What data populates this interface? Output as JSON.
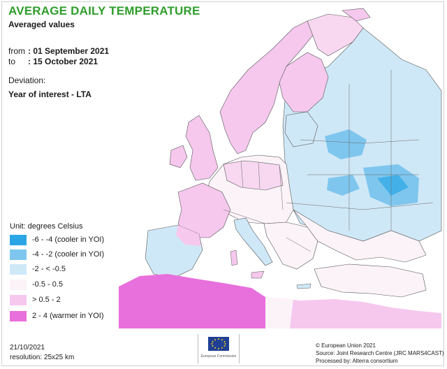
{
  "title": "AVERAGE DAILY TEMPERATURE",
  "subtitle": "Averaged values",
  "period": {
    "from_label": "from",
    "from_value": ": 01 September 2021",
    "to_label": "to",
    "to_value": ": 15 October 2021"
  },
  "deviation_label": "Deviation:",
  "comparison": "Year of interest - LTA",
  "legend": {
    "title": "Unit: degrees Celsius",
    "items": [
      {
        "label": "-6 - -4 (cooler in YOI)",
        "color": "#2aa6e6"
      },
      {
        "label": "-4 - -2 (cooler in YOI)",
        "color": "#7fc6ee"
      },
      {
        "label": "-2 - < -0.5",
        "color": "#cfe8f7"
      },
      {
        "label": "-0.5 - 0.5",
        "color": "#fbf3f8"
      },
      {
        "label": "> 0.5 - 2",
        "color": "#f6c8ee"
      },
      {
        "label": "2 - 4 (warmer in YOI)",
        "color": "#e870dc"
      }
    ]
  },
  "footer": {
    "date": "21/10/2021",
    "resolution": "resolution: 25x25 km",
    "copyright": "© European Union 2021",
    "source": "Source: Joint Research Centre (JRC MARS4CAST)",
    "processed": "Processed by: Alterra consortium"
  },
  "logo": {
    "text": "European Commission",
    "flag_color": "#1f3f94",
    "star_color": "#f7d417"
  }
}
